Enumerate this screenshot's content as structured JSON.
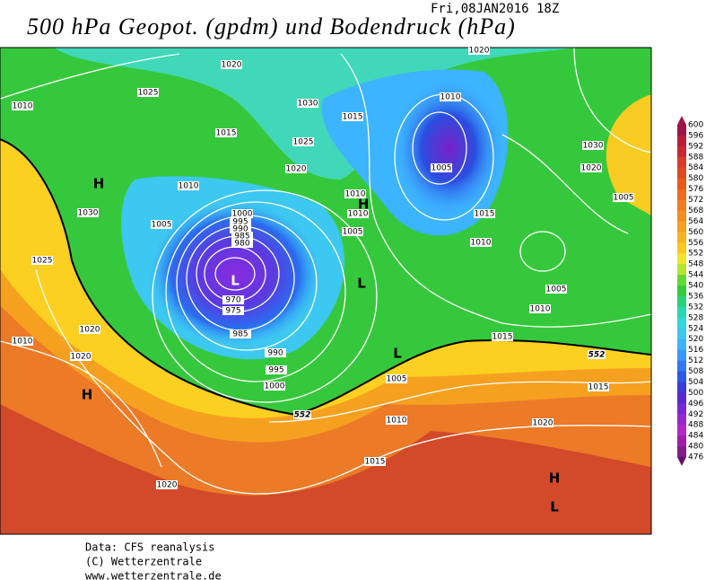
{
  "header": {
    "title": "500 hPa Geopot. (gpdm) und Bodendruck (hPa)",
    "date": "Fri,08JAN2016  18Z"
  },
  "map": {
    "isobar_labels": [
      1020,
      1025,
      1010,
      1030,
      1015,
      1025,
      1020,
      1010,
      1030,
      1005,
      1000,
      995,
      990,
      985,
      980,
      970,
      975,
      985,
      990,
      995,
      1000,
      1025,
      1020,
      1010,
      1020,
      1020,
      1015,
      1010,
      1005,
      1010,
      1010,
      1005,
      1015,
      1010,
      1020,
      1030,
      1020,
      1005,
      1005,
      1010,
      1015,
      1005,
      1010,
      1015,
      1020,
      1015
    ],
    "contour_labels": [
      552,
      552
    ],
    "pressure_centers": [
      "H",
      "H",
      "H",
      "H",
      "L",
      "L",
      "L",
      "L"
    ]
  },
  "colorbar": {
    "levels": [
      600,
      596,
      592,
      588,
      584,
      580,
      576,
      572,
      568,
      564,
      560,
      556,
      552,
      548,
      544,
      540,
      536,
      532,
      528,
      524,
      520,
      516,
      512,
      508,
      504,
      500,
      496,
      492,
      488,
      484,
      480,
      476
    ],
    "colors": [
      "#a0144a",
      "#b81e3c",
      "#c82832",
      "#d83c28",
      "#e04a20",
      "#e85a1e",
      "#ee6a1c",
      "#f27c1e",
      "#f48c20",
      "#f6a020",
      "#f8b41e",
      "#fcc81e",
      "#f0e628",
      "#b4e62c",
      "#64d832",
      "#32cc3c",
      "#28d278",
      "#28d8b4",
      "#30d8dc",
      "#3cc8f0",
      "#3cb4ff",
      "#3c96ff",
      "#3278f0",
      "#2a5ae6",
      "#3c3cdc",
      "#5a28d2",
      "#7828d2",
      "#9628d2",
      "#b428c8",
      "#a01eaa",
      "#821e8c",
      "#641464"
    ]
  },
  "footer": {
    "lines": [
      "Data: CFS reanalysis",
      "(C) Wetterzentrale",
      "www.wetterzentrale.de"
    ]
  }
}
